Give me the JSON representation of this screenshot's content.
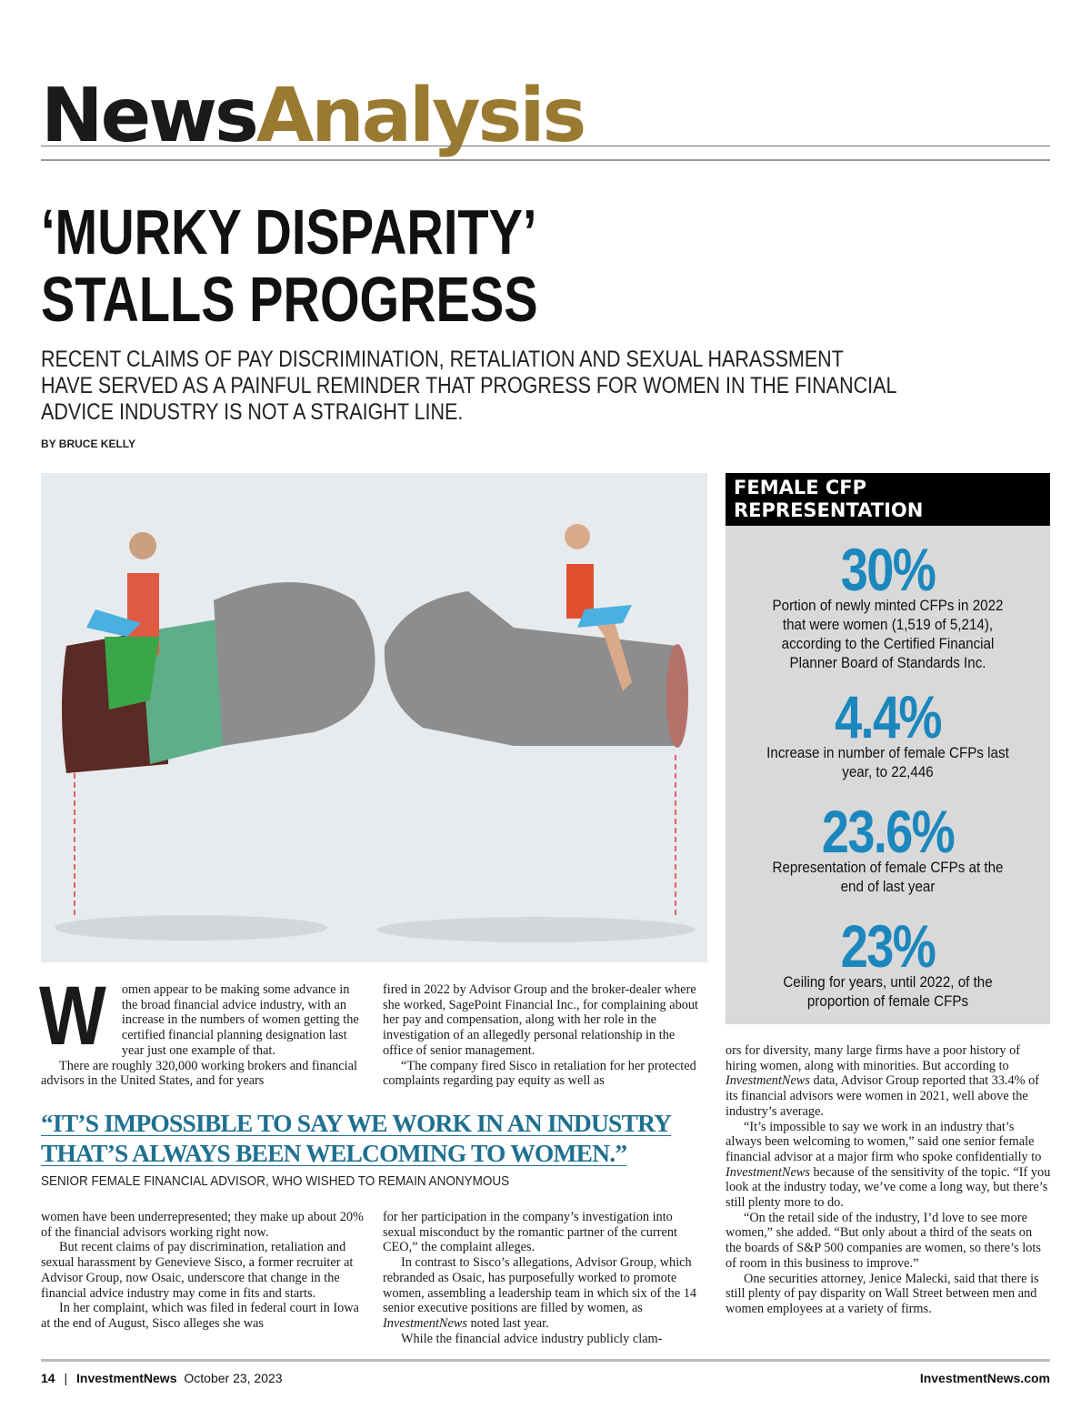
{
  "masthead": {
    "part1": "News",
    "part2": "Analysis",
    "accent_color": "#9a7a30"
  },
  "headline": [
    "‘MURKY DISPARITY’",
    "STALLS PROGRESS"
  ],
  "deck": [
    "RECENT CLAIMS OF PAY DISCRIMINATION, RETALIATION AND SEXUAL HARASSMENT",
    "HAVE SERVED AS A PAINFUL REMINDER THAT PROGRESS FOR WOMEN IN THE FINANCIAL",
    "ADVICE INDUSTRY IS NOT A STRAIGHT LINE."
  ],
  "byline": "BY BRUCE KELLY",
  "sidebar": {
    "title": "FEMALE CFP REPRESENTATION",
    "stat_color": "#1b87bd",
    "stats": [
      {
        "value": "30%",
        "desc": "Portion of newly minted CFPs in 2022 that were women (1,519 of 5,214), according to the Certified Financial Planner Board of Standards Inc."
      },
      {
        "value": "4.4%",
        "desc": "Increase in number of female CFPs last year, to 22,446"
      },
      {
        "value": "23.6%",
        "desc": "Representation of female CFPs at the end of last year"
      },
      {
        "value": "23%",
        "desc": "Ceiling for years, until 2022, of the proportion of female CFPs"
      }
    ]
  },
  "body": {
    "dropcap": "W",
    "col1_top": [
      "omen appear to be making some advance in the broad financial advice industry, with an increase in the numbers of women getting the certified financial planning designation last year just one example of that.",
      "There are roughly 320,000 working brokers and financial advisors in the United States, and for years"
    ],
    "col2_top": [
      "fired in 2022 by Advisor Group and the broker-dealer where she worked, SagePoint Financial Inc., for complaining about her pay and compensation, along with her role in the investigation of an allegedly personal relationship in the office of senior management.",
      "“The company fired Sisco in retaliation for her protected complaints regarding pay equity as well as"
    ],
    "col1_bottom": [
      "women have been underrepresented; they make up about 20% of the financial advisors working right now.",
      "But recent claims of pay discrimination, retaliation and sexual harassment by Genevieve Sisco, a former recruiter at Advisor Group, now Osaic, underscore that change in the financial advice industry may come in fits and starts.",
      "In her complaint, which was filed in federal court in Iowa at the end of August, Sisco alleges she was"
    ],
    "col2_bottom": [
      "for her participation in the company’s investigation into sexual misconduct by the romantic partner of the current CEO,” the complaint alleges.",
      "In contrast to Sisco’s allegations, Advisor Group, which rebranded as Osaic, has purposefully worked to promote women, assembling a leadership team in which six of the 14 senior executive positions are filled by women, as InvestmentNews noted last year.",
      "While the financial advice industry publicly clam-"
    ],
    "col3": [
      "ors for diversity, many large firms have a poor history of hiring women, along with minorities. But according to InvestmentNews data, Advisor Group reported that 33.4% of its financial advisors were women in 2021, well above the industry’s average.",
      "“It’s impossible to say we work in an industry that’s always been welcoming to women,” said one senior female financial advisor at a major firm who spoke confidentially to InvestmentNews because of the sensitivity of the topic. “If you look at the industry today, we’ve come a long way, but there’s still plenty more to do.",
      "“On the retail side of the industry, I’d love to see more women,” she added. “But only about a third of the seats on the boards of S&P 500 companies are women, so there’s lots of room in this business to improve.”",
      "One securities attorney, Jenice Malecki, said that there is still plenty of pay disparity on Wall Street between men and women employees at a variety of firms."
    ]
  },
  "pull_quote": {
    "lines": [
      "“IT’S IMPOSSIBLE TO SAY WE WORK IN AN INDUSTRY",
      "THAT’S ALWAYS BEEN WELCOMING TO WOMEN.”"
    ],
    "attribution": "SENIOR FEMALE FINANCIAL ADVISOR, WHO WISHED TO REMAIN ANONYMOUS",
    "color": "#1f7090"
  },
  "footer": {
    "page": "14",
    "sep": "|",
    "publication": "InvestmentNews",
    "date": "October 23, 2023",
    "site": "InvestmentNews.com"
  }
}
